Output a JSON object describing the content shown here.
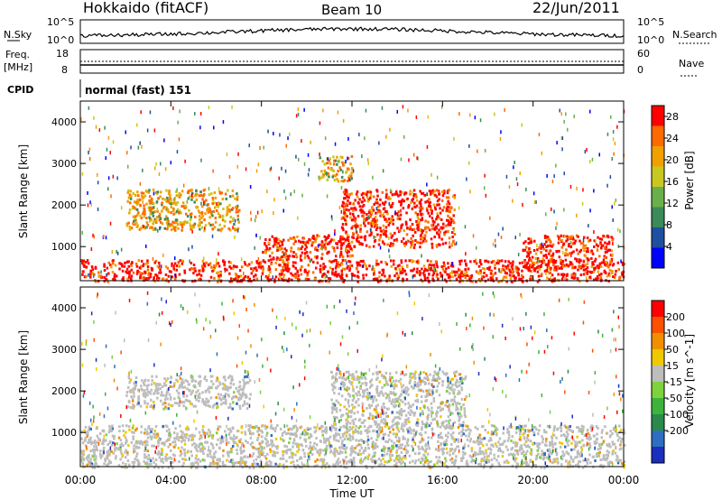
{
  "header": {
    "station": "Hokkaido (fitACF)",
    "beam": "Beam 10",
    "date": "22/Jun/2011"
  },
  "top_panels": {
    "nsky_label": "N.Sky",
    "nsky_ticks": [
      "10^5",
      "10^0"
    ],
    "nsearch_label": "N.Search",
    "freq_label": "Freq.",
    "freq_unit": "[MHz]",
    "freq_ticks": [
      "18",
      "8"
    ],
    "nave_label": "Nave",
    "nave_ticks": [
      "60",
      "0"
    ],
    "cpid_label": "CPID",
    "cpid_value": "normal (fast) 151"
  },
  "x_axis": {
    "label": "Time UT",
    "ticks": [
      "00:00",
      "04:00",
      "08:00",
      "12:00",
      "16:00",
      "20:00",
      "00:00"
    ]
  },
  "chart_data": [
    {
      "type": "heatmap",
      "parameter": "Power",
      "xlabel": "Time UT",
      "ylabel": "Slant Range [km]",
      "xlim": [
        0,
        24
      ],
      "ylim": [
        180,
        4500
      ],
      "y_ticks": [
        "1000",
        "2000",
        "3000",
        "4000"
      ],
      "colorbar": {
        "label": "Power [dB]",
        "ticks": [
          "4",
          "8",
          "12",
          "16",
          "20",
          "24",
          "28"
        ],
        "range": [
          0,
          30
        ],
        "colors": [
          "#0000ff",
          "#1f4fa0",
          "#3a8a5a",
          "#6ab04a",
          "#c8c820",
          "#f0a000",
          "#ff6a00",
          "#ff0000"
        ]
      },
      "features": [
        {
          "t_start": 0,
          "t_end": 24,
          "range_min": 180,
          "range_max": 700,
          "level": "high"
        },
        {
          "t_start": 8.0,
          "t_end": 12.0,
          "range_min": 700,
          "range_max": 1300,
          "level": "high"
        },
        {
          "t_start": 11.5,
          "t_end": 16.5,
          "range_min": 1000,
          "range_max": 2400,
          "level": "high"
        },
        {
          "t_start": 19.5,
          "t_end": 23.5,
          "range_min": 500,
          "range_max": 1300,
          "level": "high"
        },
        {
          "t_start": 2.0,
          "t_end": 7.0,
          "range_min": 1400,
          "range_max": 2400,
          "level": "medium"
        },
        {
          "t_start": 10.5,
          "t_end": 12.0,
          "range_min": 2600,
          "range_max": 3200,
          "level": "medium"
        }
      ]
    },
    {
      "type": "heatmap",
      "parameter": "Velocity",
      "xlabel": "Time UT",
      "ylabel": "Slant Range [km]",
      "xlim": [
        0,
        24
      ],
      "ylim": [
        180,
        4500
      ],
      "y_ticks": [
        "1000",
        "2000",
        "3000",
        "4000"
      ],
      "colorbar": {
        "label": "Velocity [m s^-1]",
        "ticks": [
          "200",
          "100",
          "50",
          "15",
          "-15",
          "-50",
          "-100",
          "-200"
        ],
        "range": [
          -250,
          250
        ],
        "colors": [
          "#1a2fbf",
          "#2e6ec0",
          "#2a8a4a",
          "#3cb43c",
          "#7ed23c",
          "#bdbdbd",
          "#f0c800",
          "#f09000",
          "#ff5000",
          "#ff0000"
        ]
      },
      "features": [
        {
          "t_start": 0,
          "t_end": 24,
          "range_min": 180,
          "range_max": 1200,
          "value": "ground scatter"
        },
        {
          "t_start": 11.0,
          "t_end": 17.0,
          "range_min": 1200,
          "range_max": 2500,
          "value": "ground scatter"
        },
        {
          "t_start": 2.0,
          "t_end": 7.5,
          "range_min": 1600,
          "range_max": 2400,
          "value": "ground scatter"
        }
      ]
    }
  ]
}
